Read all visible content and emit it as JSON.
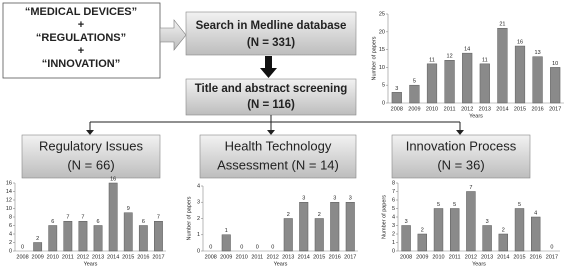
{
  "diagram": {
    "query": [
      "“MEDICAL DEVICES”",
      "+",
      "“REGULATIONS”",
      "+",
      "“INNOVATION”"
    ],
    "search": {
      "title": "Search in Medline database",
      "count": "(N = 331)"
    },
    "screening": {
      "title": "Title and abstract screening",
      "count": "(N = 116)"
    },
    "branches": [
      {
        "lines": [
          "Regulatory Issues",
          "(N = 66)"
        ]
      },
      {
        "lines": [
          "Health Technology",
          "Assessment   (N = 14)"
        ]
      },
      {
        "lines": [
          "Innovation Process",
          "(N = 36)"
        ]
      }
    ]
  },
  "chart_data": [
    {
      "type": "bar",
      "categories": [
        "2008",
        "2009",
        "2010",
        "2011",
        "2012",
        "2013",
        "2014",
        "2015",
        "2016",
        "2017"
      ],
      "values": [
        3,
        5,
        11,
        12,
        14,
        11,
        21,
        16,
        13,
        10
      ],
      "color": "#8a8a8a",
      "ylim": [
        0,
        25
      ],
      "yticks": [
        0,
        5,
        10,
        15,
        20,
        25
      ],
      "y_label": "Number of papers",
      "x_label": "Years"
    },
    {
      "type": "bar",
      "categories": [
        "2008",
        "2009",
        "2010",
        "2011",
        "2012",
        "2013",
        "2014",
        "2015",
        "2016",
        "2017"
      ],
      "values": [
        0,
        2,
        6,
        7,
        7,
        6,
        16,
        9,
        6,
        7
      ],
      "color": "#8a8a8a",
      "ylim": [
        0,
        16
      ],
      "yticks": [
        0,
        2,
        4,
        6,
        8,
        10,
        12,
        14,
        16
      ],
      "x_label": "Years"
    },
    {
      "type": "bar",
      "categories": [
        "2008",
        "2009",
        "2010",
        "2011",
        "2012",
        "2013",
        "2014",
        "2015",
        "2016",
        "2017"
      ],
      "values": [
        0,
        1,
        0,
        0,
        0,
        2,
        3,
        2,
        3,
        3
      ],
      "color": "#8a8a8a",
      "ylim": [
        0,
        4
      ],
      "yticks": [
        0,
        1,
        2,
        3,
        4
      ],
      "y_label": "Number of papers",
      "x_label": "Years"
    },
    {
      "type": "bar",
      "categories": [
        "2008",
        "2009",
        "2010",
        "2011",
        "2012",
        "2013",
        "2014",
        "2015",
        "2016",
        "2017"
      ],
      "values": [
        3,
        2,
        5,
        5,
        7,
        3,
        2,
        5,
        4,
        0
      ],
      "color": "#8a8a8a",
      "ylim": [
        0,
        8
      ],
      "yticks": [
        0,
        1,
        2,
        3,
        4,
        5,
        6,
        7,
        8
      ],
      "y_label": "Number of papers",
      "x_label": "Years"
    }
  ]
}
